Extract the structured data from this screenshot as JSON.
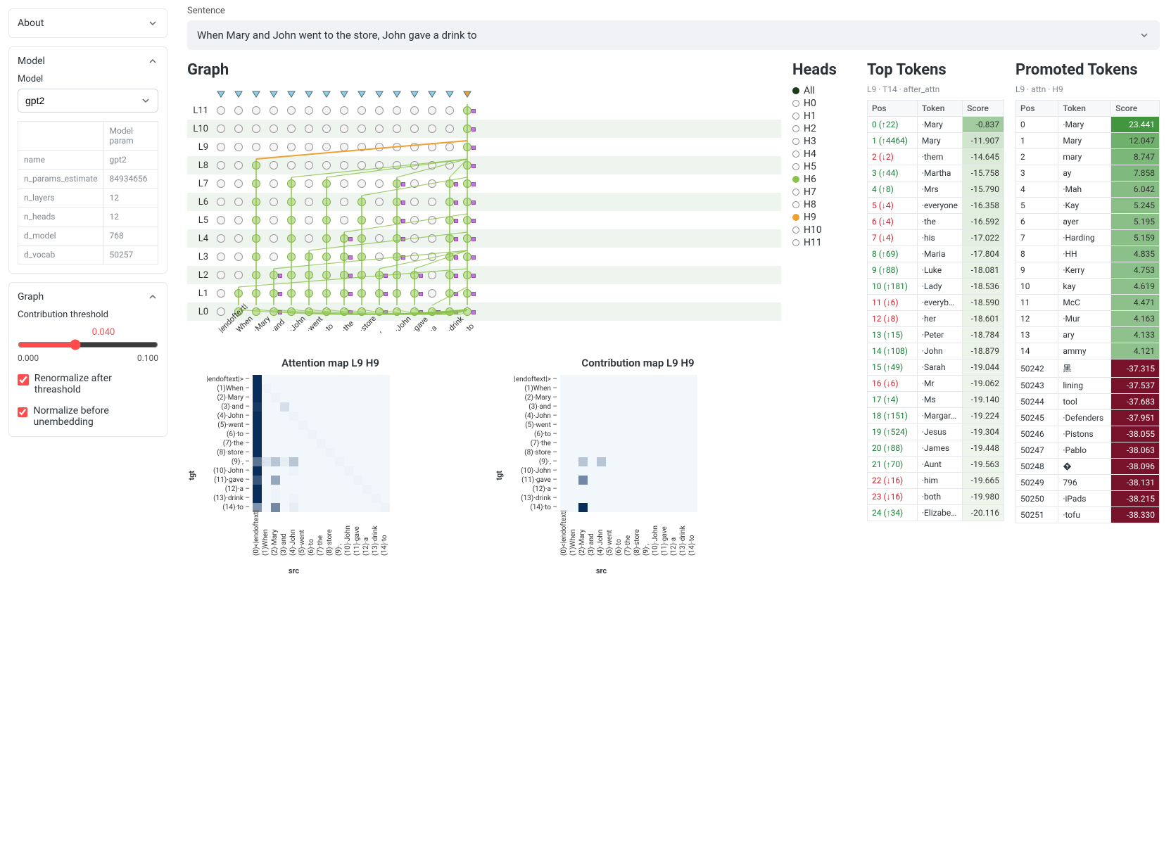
{
  "sidebar": {
    "about": {
      "title": "About",
      "expanded": false
    },
    "model": {
      "title": "Model",
      "label": "Model",
      "selected": "gpt2",
      "params_header": [
        "",
        "Model param"
      ],
      "params": [
        [
          "name",
          "gpt2"
        ],
        [
          "n_params_estimate",
          "84934656"
        ],
        [
          "n_layers",
          "12"
        ],
        [
          "n_heads",
          "12"
        ],
        [
          "d_model",
          "768"
        ],
        [
          "d_vocab",
          "50257"
        ]
      ]
    },
    "graph": {
      "title": "Graph",
      "threshold_label": "Contribution threshold",
      "threshold_value": "0.040",
      "threshold_min": "0.000",
      "threshold_max": "0.100",
      "renorm_label": "Renormalize after threashold",
      "renorm_checked": true,
      "normbefore_label": "Normalize before unembedding",
      "normbefore_checked": true
    }
  },
  "sentence": {
    "label": "Sentence",
    "text": "When Mary and John went to the store, John gave a drink to"
  },
  "graph": {
    "title": "Graph",
    "tokens": [
      "|endoftext|",
      "When",
      "·Mary",
      "·and",
      "·John",
      "·went",
      "·to",
      "·the",
      "·store",
      ",",
      "·John",
      "·gave",
      "·a",
      "·drink",
      "·to"
    ],
    "layers": [
      "L11",
      "L10",
      "L9",
      "L8",
      "L7",
      "L6",
      "L5",
      "L4",
      "L3",
      "L2",
      "L1",
      "L0"
    ],
    "active_cols": [
      1,
      2,
      3,
      4,
      5,
      6,
      7,
      8,
      9,
      10,
      11,
      12,
      13,
      14
    ],
    "special_tri_col": 14,
    "head_colors": {
      "default": "#8fcfe6",
      "special": "#f0a030"
    },
    "edge_colors": {
      "green": "#8bc34a",
      "orange": "#f0a030"
    },
    "active_nodes": {
      "L11": [
        14
      ],
      "L10": [
        14
      ],
      "L9": [
        14
      ],
      "L8": [
        2,
        14
      ],
      "L7": [
        2,
        4,
        6,
        10,
        13,
        14
      ],
      "L6": [
        2,
        4,
        6,
        8,
        10,
        13,
        14
      ],
      "L5": [
        2,
        4,
        6,
        8,
        10,
        13,
        14
      ],
      "L4": [
        2,
        4,
        6,
        7,
        8,
        10,
        13,
        14
      ],
      "L3": [
        2,
        4,
        5,
        6,
        7,
        8,
        10,
        13,
        14
      ],
      "L2": [
        2,
        3,
        4,
        5,
        6,
        7,
        8,
        9,
        10,
        11,
        13,
        14
      ],
      "L1": [
        1,
        2,
        3,
        4,
        5,
        6,
        7,
        8,
        9,
        10,
        11,
        13,
        14
      ],
      "L0": [
        1,
        2,
        3,
        4,
        5,
        6,
        7,
        8,
        9,
        10,
        11,
        12,
        13,
        14
      ]
    },
    "sq_nodes": {
      "L11": [
        14
      ],
      "L10": [
        14
      ],
      "L9": [
        14
      ],
      "L8": [
        14
      ],
      "L7": [
        10,
        13,
        14
      ],
      "L6": [
        10,
        13,
        14
      ],
      "L5": [
        10,
        13,
        14
      ],
      "L4": [
        7,
        10,
        13,
        14
      ],
      "L3": [
        7,
        10,
        13,
        14
      ],
      "L2": [
        3,
        7,
        9,
        11,
        13,
        14
      ],
      "L1": [
        3,
        7,
        9,
        11,
        13,
        14
      ],
      "L0": [
        3,
        7,
        9,
        11,
        12,
        13,
        14
      ]
    },
    "edges": [
      {
        "from": {
          "layer": "L9",
          "col": 14
        },
        "to": {
          "layer": "L8",
          "col": 2
        },
        "color": "orange"
      }
    ]
  },
  "heads": {
    "title": "Heads",
    "items": [
      {
        "label": "All",
        "color": "#1a3a1a",
        "filled": true
      },
      {
        "label": "H0",
        "color": "#888"
      },
      {
        "label": "H1",
        "color": "#888"
      },
      {
        "label": "H2",
        "color": "#888"
      },
      {
        "label": "H3",
        "color": "#888"
      },
      {
        "label": "H4",
        "color": "#888"
      },
      {
        "label": "H5",
        "color": "#888"
      },
      {
        "label": "H6",
        "color": "#8bc34a",
        "filled": true
      },
      {
        "label": "H7",
        "color": "#888"
      },
      {
        "label": "H8",
        "color": "#888"
      },
      {
        "label": "H9",
        "color": "#f0a030",
        "filled": true
      },
      {
        "label": "H10",
        "color": "#888"
      },
      {
        "label": "H11",
        "color": "#888"
      }
    ]
  },
  "top_tokens": {
    "title": "Top Tokens",
    "subtitle": "L9 · T14 · after_attn",
    "cols": [
      "Pos",
      "Token",
      "Score"
    ],
    "rows": [
      {
        "pos": "0 (↑22)",
        "dir": "up",
        "token": "·Mary",
        "score": -0.837
      },
      {
        "pos": "1 (↑4464)",
        "dir": "up",
        "token": "Mary",
        "score": -11.907
      },
      {
        "pos": "2 (↓2)",
        "dir": "down",
        "token": "·them",
        "score": -14.645
      },
      {
        "pos": "3 (↑44)",
        "dir": "up",
        "token": "·Martha",
        "score": -15.758
      },
      {
        "pos": "4 (↑8)",
        "dir": "up",
        "token": "·Mrs",
        "score": -15.79
      },
      {
        "pos": "5 (↓4)",
        "dir": "down",
        "token": "·everyone",
        "score": -16.358
      },
      {
        "pos": "6 (↓4)",
        "dir": "down",
        "token": "·the",
        "score": -16.592
      },
      {
        "pos": "7 (↓4)",
        "dir": "down",
        "token": "·his",
        "score": -17.022
      },
      {
        "pos": "8 (↑69)",
        "dir": "up",
        "token": "·Maria",
        "score": -17.804
      },
      {
        "pos": "9 (↑88)",
        "dir": "up",
        "token": "·Luke",
        "score": -18.081
      },
      {
        "pos": "10 (↑181)",
        "dir": "up",
        "token": "·Lady",
        "score": -18.536
      },
      {
        "pos": "11 (↓6)",
        "dir": "down",
        "token": "·everybod",
        "score": -18.59
      },
      {
        "pos": "12 (↓8)",
        "dir": "down",
        "token": "·her",
        "score": -18.601
      },
      {
        "pos": "13 (↑15)",
        "dir": "up",
        "token": "·Peter",
        "score": -18.784
      },
      {
        "pos": "14 (↑108)",
        "dir": "up",
        "token": "·John",
        "score": -18.879
      },
      {
        "pos": "15 (↑49)",
        "dir": "up",
        "token": "·Sarah",
        "score": -19.044
      },
      {
        "pos": "16 (↓6)",
        "dir": "down",
        "token": "·Mr",
        "score": -19.062
      },
      {
        "pos": "17 (↑4)",
        "dir": "up",
        "token": "·Ms",
        "score": -19.14
      },
      {
        "pos": "18 (↑151)",
        "dir": "up",
        "token": "·Margaret",
        "score": -19.224
      },
      {
        "pos": "19 (↑524)",
        "dir": "up",
        "token": "·Jesus",
        "score": -19.304
      },
      {
        "pos": "20 (↑88)",
        "dir": "up",
        "token": "·James",
        "score": -19.448
      },
      {
        "pos": "21 (↑70)",
        "dir": "up",
        "token": "·Aunt",
        "score": -19.563
      },
      {
        "pos": "22 (↓16)",
        "dir": "down",
        "token": "·him",
        "score": -19.665
      },
      {
        "pos": "23 (↓16)",
        "dir": "down",
        "token": "·both",
        "score": -19.98
      },
      {
        "pos": "24 (↑34)",
        "dir": "up",
        "token": "·Elizabeth",
        "score": -20.116
      }
    ],
    "score_color_scale": {
      "min": -20.2,
      "max": 24,
      "neg_min": -39,
      "neg_color": "#88122a",
      "zero_color": "#f3f9f1",
      "pos_color": "#2e7d32"
    }
  },
  "promoted_tokens": {
    "title": "Promoted Tokens",
    "subtitle": "L9 · attn · H9",
    "cols": [
      "Pos",
      "Token",
      "Score"
    ],
    "rows": [
      {
        "pos": "0",
        "token": "·Mary",
        "score": 23.441
      },
      {
        "pos": "1",
        "token": "Mary",
        "score": 12.047
      },
      {
        "pos": "2",
        "token": "mary",
        "score": 8.747
      },
      {
        "pos": "3",
        "token": "ay",
        "score": 7.858
      },
      {
        "pos": "4",
        "token": "·Mah",
        "score": 6.042
      },
      {
        "pos": "5",
        "token": "·Kay",
        "score": 5.245
      },
      {
        "pos": "6",
        "token": "ayer",
        "score": 5.195
      },
      {
        "pos": "7",
        "token": "·Harding",
        "score": 5.159
      },
      {
        "pos": "8",
        "token": "·HH",
        "score": 4.835
      },
      {
        "pos": "9",
        "token": "·Kerry",
        "score": 4.753
      },
      {
        "pos": "10",
        "token": "kay",
        "score": 4.619
      },
      {
        "pos": "11",
        "token": "McC",
        "score": 4.471
      },
      {
        "pos": "12",
        "token": "·Mur",
        "score": 4.163
      },
      {
        "pos": "13",
        "token": "ary",
        "score": 4.133
      },
      {
        "pos": "14",
        "token": "ammy",
        "score": 4.121
      },
      {
        "pos": "50242",
        "token": "黑",
        "score": -37.315
      },
      {
        "pos": "50243",
        "token": "lining",
        "score": -37.537
      },
      {
        "pos": "50244",
        "token": "tool",
        "score": -37.683
      },
      {
        "pos": "50245",
        "token": "·Defenders",
        "score": -37.951
      },
      {
        "pos": "50246",
        "token": "·Pistons",
        "score": -38.055
      },
      {
        "pos": "50247",
        "token": "·Pablo",
        "score": -38.063
      },
      {
        "pos": "50248",
        "token": "�",
        "score": -38.096
      },
      {
        "pos": "50249",
        "token": "796",
        "score": -38.131
      },
      {
        "pos": "50250",
        "token": "·iPads",
        "score": -38.215
      },
      {
        "pos": "50251",
        "token": "·tofu",
        "score": -38.33
      }
    ]
  },
  "attention_map": {
    "title": "Attention map L9 H9",
    "tgt_labels": [
      "|endoftext|>",
      "(1)When",
      "(2)·Mary",
      "(3)·and",
      "(4)·John",
      "(5)·went",
      "(6)·to",
      "(7)·the",
      "(8)·store",
      "(9)·,",
      "(10)·John",
      "(11)·gave",
      "(12)·a",
      "(13)·drink",
      "(14)·to"
    ],
    "src_labels": [
      "(0)<|endoftext|",
      "(1)When",
      "(2)·Mary",
      "(3)·and",
      "(4)·John",
      "(5)·went",
      "(6)·to",
      "(7)·the",
      "(8)·store",
      "(9)·,",
      "(10)·John",
      "(11)·gave",
      "(12)·a",
      "(13)·drink",
      "(14)·to"
    ],
    "x_axis": "src",
    "y_axis": "tgt",
    "color_scale": {
      "min": 0,
      "max": 1,
      "low": "#f2f7fc",
      "high": "#0a2e5c"
    },
    "cells": [
      [
        1,
        0,
        0,
        0,
        0,
        0,
        0,
        0,
        0,
        0,
        0,
        0,
        0,
        0,
        0
      ],
      [
        1,
        0.02,
        0,
        0,
        0,
        0,
        0,
        0,
        0,
        0,
        0,
        0,
        0,
        0,
        0
      ],
      [
        1,
        0,
        0.02,
        0,
        0,
        0,
        0,
        0,
        0,
        0,
        0,
        0,
        0,
        0,
        0
      ],
      [
        0.95,
        0,
        0,
        0.12,
        0,
        0,
        0,
        0,
        0,
        0,
        0,
        0,
        0,
        0,
        0
      ],
      [
        1,
        0,
        0,
        0,
        0.02,
        0,
        0,
        0,
        0,
        0,
        0,
        0,
        0,
        0,
        0
      ],
      [
        1,
        0,
        0,
        0,
        0,
        0.02,
        0,
        0,
        0,
        0,
        0,
        0,
        0,
        0,
        0
      ],
      [
        1,
        0,
        0,
        0,
        0,
        0,
        0.02,
        0,
        0,
        0,
        0,
        0,
        0,
        0,
        0
      ],
      [
        1,
        0,
        0,
        0,
        0,
        0,
        0,
        0.02,
        0,
        0,
        0,
        0,
        0,
        0,
        0
      ],
      [
        1,
        0,
        0,
        0,
        0,
        0,
        0,
        0,
        0.02,
        0,
        0,
        0,
        0,
        0,
        0
      ],
      [
        0.65,
        0.1,
        0.25,
        0.05,
        0.25,
        0,
        0,
        0,
        0,
        0.02,
        0,
        0,
        0,
        0,
        0
      ],
      [
        1,
        0,
        0,
        0,
        0.02,
        0,
        0,
        0,
        0,
        0,
        0.02,
        0,
        0,
        0,
        0
      ],
      [
        0.8,
        0,
        0.4,
        0,
        0,
        0,
        0,
        0,
        0,
        0,
        0,
        0.02,
        0,
        0,
        0
      ],
      [
        1,
        0,
        0.02,
        0,
        0,
        0,
        0,
        0,
        0,
        0,
        0,
        0,
        0.02,
        0,
        0
      ],
      [
        1,
        0,
        0.02,
        0,
        0.02,
        0,
        0,
        0,
        0,
        0,
        0,
        0,
        0,
        0.02,
        0
      ],
      [
        0.5,
        0,
        0.55,
        0,
        0.05,
        0,
        0,
        0,
        0,
        0,
        0,
        0,
        0,
        0,
        0.02
      ]
    ]
  },
  "contribution_map": {
    "title": "Contribution map L9 H9",
    "cells": [
      [
        0,
        0,
        0,
        0,
        0,
        0,
        0,
        0,
        0,
        0,
        0,
        0,
        0,
        0,
        0
      ],
      [
        0,
        0,
        0,
        0,
        0,
        0,
        0,
        0,
        0,
        0,
        0,
        0,
        0,
        0,
        0
      ],
      [
        0,
        0,
        0,
        0,
        0,
        0,
        0,
        0,
        0,
        0,
        0,
        0,
        0,
        0,
        0
      ],
      [
        0,
        0,
        0,
        0,
        0,
        0,
        0,
        0,
        0,
        0,
        0,
        0,
        0,
        0,
        0
      ],
      [
        0,
        0,
        0,
        0,
        0,
        0,
        0,
        0,
        0,
        0,
        0,
        0,
        0,
        0,
        0
      ],
      [
        0,
        0,
        0,
        0,
        0,
        0,
        0,
        0,
        0,
        0,
        0,
        0,
        0,
        0,
        0
      ],
      [
        0,
        0,
        0,
        0,
        0,
        0,
        0,
        0,
        0,
        0,
        0,
        0,
        0,
        0,
        0
      ],
      [
        0,
        0,
        0,
        0,
        0,
        0,
        0,
        0,
        0,
        0,
        0,
        0,
        0,
        0,
        0
      ],
      [
        0,
        0,
        0,
        0,
        0,
        0,
        0,
        0,
        0,
        0,
        0,
        0,
        0,
        0,
        0
      ],
      [
        0,
        0,
        0.25,
        0,
        0.25,
        0,
        0,
        0,
        0,
        0,
        0,
        0,
        0,
        0,
        0
      ],
      [
        0,
        0,
        0,
        0,
        0,
        0,
        0,
        0,
        0,
        0,
        0,
        0,
        0,
        0,
        0
      ],
      [
        0,
        0,
        0.55,
        0,
        0,
        0,
        0,
        0,
        0,
        0,
        0,
        0,
        0,
        0,
        0
      ],
      [
        0,
        0,
        0,
        0,
        0,
        0,
        0,
        0,
        0,
        0,
        0,
        0,
        0,
        0,
        0
      ],
      [
        0,
        0,
        0,
        0,
        0,
        0,
        0,
        0,
        0,
        0,
        0,
        0,
        0,
        0,
        0
      ],
      [
        0,
        0,
        1.0,
        0,
        0,
        0,
        0,
        0,
        0,
        0,
        0,
        0,
        0,
        0,
        0
      ]
    ]
  }
}
